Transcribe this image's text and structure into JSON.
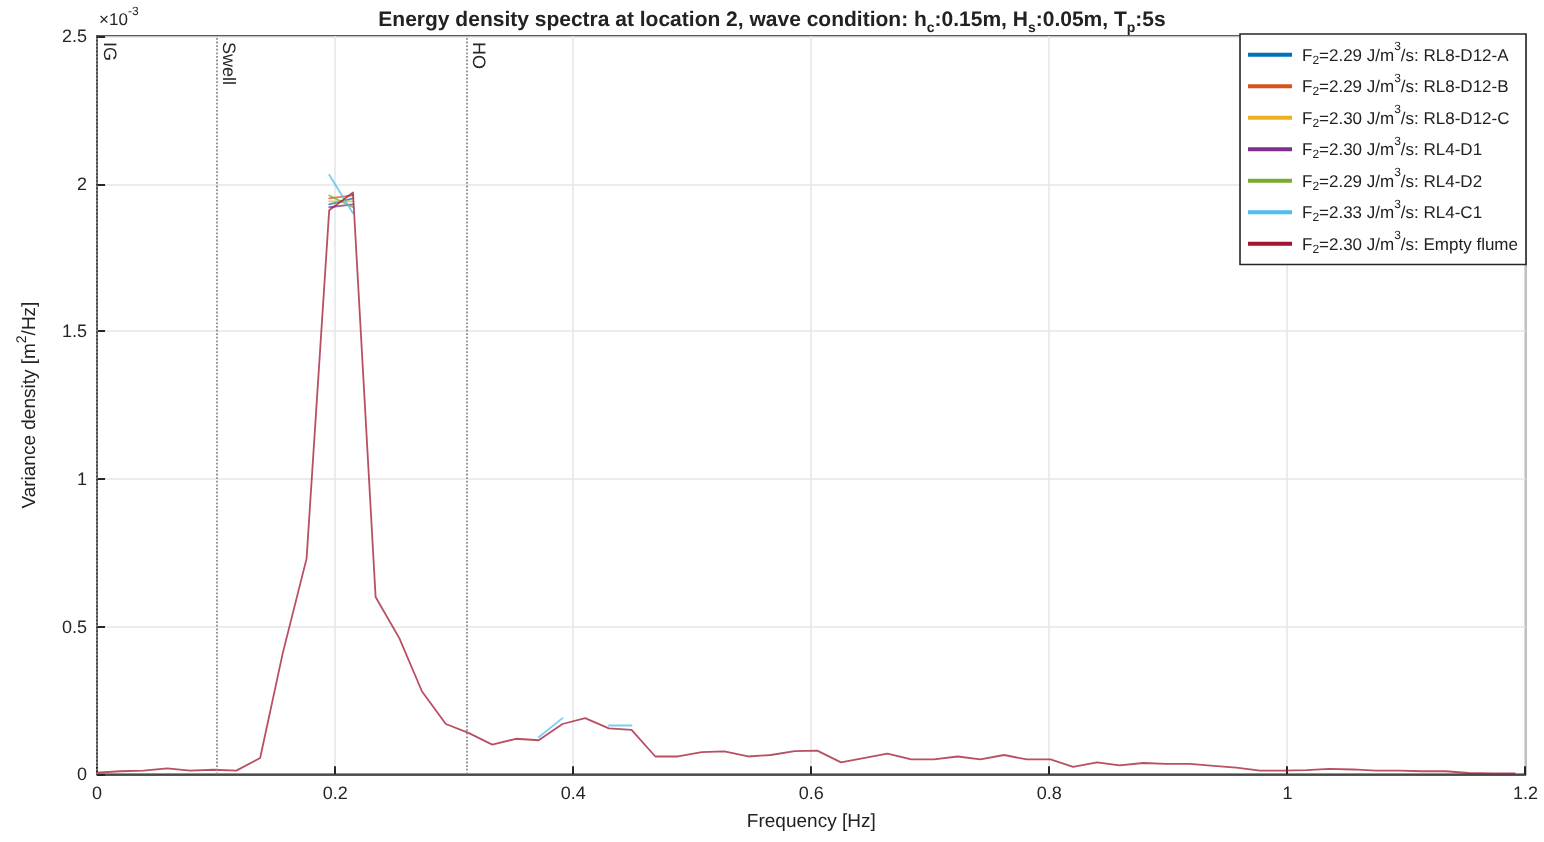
{
  "chart_data": {
    "type": "line",
    "title": "Energy density spectra at location 2, wave condition: h$_{c}$:0.15m, H$_{s}$:0.05m, T$_{p}$:5s",
    "xlabel": "Frequency [Hz]",
    "ylabel": "Variance density [m$^{2}$/Hz]",
    "annotations": [
      "×10$^{-3}$"
    ],
    "x": [
      0,
      0.0195,
      0.039,
      0.059,
      0.078,
      0.098,
      0.117,
      0.137,
      0.156,
      0.176,
      0.195,
      0.215,
      0.234,
      0.254,
      0.273,
      0.293,
      0.312,
      0.332,
      0.352,
      0.371,
      0.391,
      0.41,
      0.43,
      0.449,
      0.469,
      0.488,
      0.508,
      0.527,
      0.547,
      0.566,
      0.586,
      0.605,
      0.625,
      0.645,
      0.664,
      0.684,
      0.703,
      0.723,
      0.742,
      0.762,
      0.781,
      0.801,
      0.82,
      0.84,
      0.859,
      0.879,
      0.898,
      0.918,
      0.938,
      0.957,
      0.977,
      0.996,
      1.016,
      1.035,
      1.055,
      1.074,
      1.094,
      1.113,
      1.133,
      1.152,
      1.172,
      1.191
    ],
    "series": [
      {
        "name": "F$_{2}$=2.29 J/m$^{3}$/s: RL8-D12-A",
        "color": "#0072bd",
        "values": [
          null,
          null,
          null,
          null,
          null,
          null,
          null,
          null,
          null,
          null,
          1.93,
          1.95,
          null,
          null,
          null,
          null,
          null,
          null,
          null,
          null,
          null,
          null,
          null,
          null,
          null,
          null,
          null,
          null,
          null,
          null,
          null,
          null,
          null,
          null,
          null,
          null,
          null,
          null,
          null,
          null,
          null,
          null,
          null,
          null,
          null,
          null,
          null,
          null,
          null,
          null,
          null,
          null,
          null,
          null,
          null,
          null,
          null,
          null,
          null,
          null,
          null,
          null
        ]
      },
      {
        "name": "F$_{2}$=2.29 J/m$^{3}$/s: RL8-D12-B",
        "color": "#d95319",
        "values": [
          null,
          null,
          null,
          null,
          null,
          null,
          null,
          null,
          null,
          null,
          1.95,
          1.96,
          null,
          null,
          null,
          null,
          null,
          null,
          null,
          null,
          null,
          null,
          null,
          null,
          null,
          null,
          null,
          null,
          null,
          null,
          null,
          null,
          null,
          null,
          null,
          null,
          null,
          null,
          null,
          null,
          null,
          null,
          null,
          null,
          null,
          null,
          null,
          null,
          null,
          null,
          null,
          null,
          null,
          null,
          null,
          null,
          null,
          null,
          null,
          null,
          null,
          null
        ]
      },
      {
        "name": "F$_{2}$=2.30 J/m$^{3}$/s: RL8-D12-C",
        "color": "#edb120",
        "values": [
          null,
          null,
          null,
          null,
          null,
          null,
          null,
          null,
          null,
          null,
          1.94,
          1.94,
          null,
          null,
          null,
          null,
          null,
          null,
          null,
          null,
          null,
          null,
          null,
          null,
          null,
          null,
          null,
          null,
          null,
          null,
          null,
          null,
          null,
          null,
          null,
          null,
          null,
          null,
          null,
          null,
          null,
          null,
          null,
          null,
          null,
          null,
          null,
          null,
          null,
          null,
          null,
          null,
          null,
          null,
          null,
          null,
          null,
          null,
          null,
          null,
          null,
          null
        ]
      },
      {
        "name": "F$_{2}$=2.30 J/m$^{3}$/s: RL4-D1",
        "color": "#7e2f8e",
        "values": [
          null,
          null,
          null,
          null,
          null,
          null,
          null,
          null,
          null,
          null,
          1.92,
          1.93,
          null,
          null,
          null,
          null,
          null,
          null,
          null,
          null,
          null,
          null,
          null,
          null,
          null,
          null,
          null,
          null,
          null,
          null,
          null,
          null,
          null,
          null,
          null,
          null,
          null,
          null,
          null,
          null,
          null,
          null,
          null,
          null,
          null,
          null,
          null,
          null,
          null,
          null,
          null,
          null,
          null,
          null,
          null,
          null,
          null,
          null,
          null,
          null,
          null,
          null
        ]
      },
      {
        "name": "F$_{2}$=2.29 J/m$^{3}$/s: RL4-D2",
        "color": "#77ac30",
        "values": [
          null,
          null,
          null,
          null,
          null,
          null,
          null,
          null,
          null,
          null,
          1.96,
          1.92,
          null,
          null,
          null,
          null,
          null,
          null,
          null,
          null,
          null,
          null,
          null,
          null,
          null,
          null,
          null,
          null,
          null,
          null,
          null,
          null,
          null,
          null,
          null,
          null,
          null,
          null,
          null,
          null,
          null,
          null,
          null,
          null,
          null,
          null,
          null,
          null,
          null,
          null,
          null,
          null,
          null,
          null,
          null,
          null,
          null,
          null,
          null,
          null,
          null,
          null
        ]
      },
      {
        "name": "F$_{2}$=2.33 J/m$^{3}$/s: RL4-C1",
        "color": "#4dbeee",
        "values": [
          null,
          null,
          null,
          null,
          null,
          null,
          null,
          null,
          null,
          null,
          2.03,
          1.9,
          null,
          null,
          null,
          null,
          null,
          null,
          null,
          0.125,
          0.19,
          null,
          0.165,
          0.165,
          null,
          null,
          null,
          null,
          null,
          null,
          null,
          null,
          null,
          null,
          null,
          null,
          null,
          null,
          null,
          null,
          null,
          null,
          null,
          null,
          null,
          null,
          null,
          null,
          null,
          null,
          null,
          null,
          null,
          null,
          null,
          null,
          null,
          null,
          null,
          null,
          null,
          null
        ]
      },
      {
        "name": "F$_{2}$=2.30 J/m$^{3}$/s: Empty flume",
        "color": "#a2142f",
        "values": [
          0.005,
          0.01,
          0.012,
          0.02,
          0.012,
          0.015,
          0.012,
          0.055,
          0.41,
          0.73,
          1.91,
          1.97,
          0.6,
          0.46,
          0.28,
          0.17,
          0.14,
          0.1,
          0.12,
          0.115,
          0.17,
          0.19,
          0.155,
          0.15,
          0.06,
          0.06,
          0.075,
          0.077,
          0.06,
          0.065,
          0.078,
          0.08,
          0.04,
          0.055,
          0.07,
          0.05,
          0.05,
          0.06,
          0.05,
          0.065,
          0.05,
          0.05,
          0.025,
          0.04,
          0.03,
          0.038,
          0.035,
          0.035,
          0.028,
          0.022,
          0.012,
          0.012,
          0.014,
          0.018,
          0.016,
          0.012,
          0.012,
          0.01,
          0.01,
          0.004,
          0.003,
          0.003
        ]
      }
    ],
    "xlim": [
      0,
      1.2
    ],
    "xticks": [
      0,
      0.2,
      0.4,
      0.6,
      0.8,
      1,
      1.2
    ],
    "ylim": [
      0,
      2.5
    ],
    "yticks": [
      0,
      0.5,
      1,
      1.5,
      2,
      2.5
    ],
    "ref_lines": [
      {
        "axis": "x",
        "value": 0,
        "label": "IG"
      },
      {
        "axis": "x",
        "value": 0.1,
        "label": "Swell"
      },
      {
        "axis": "x",
        "value": 0.31,
        "label": "HO"
      }
    ],
    "grid": true,
    "legend": "top right"
  }
}
